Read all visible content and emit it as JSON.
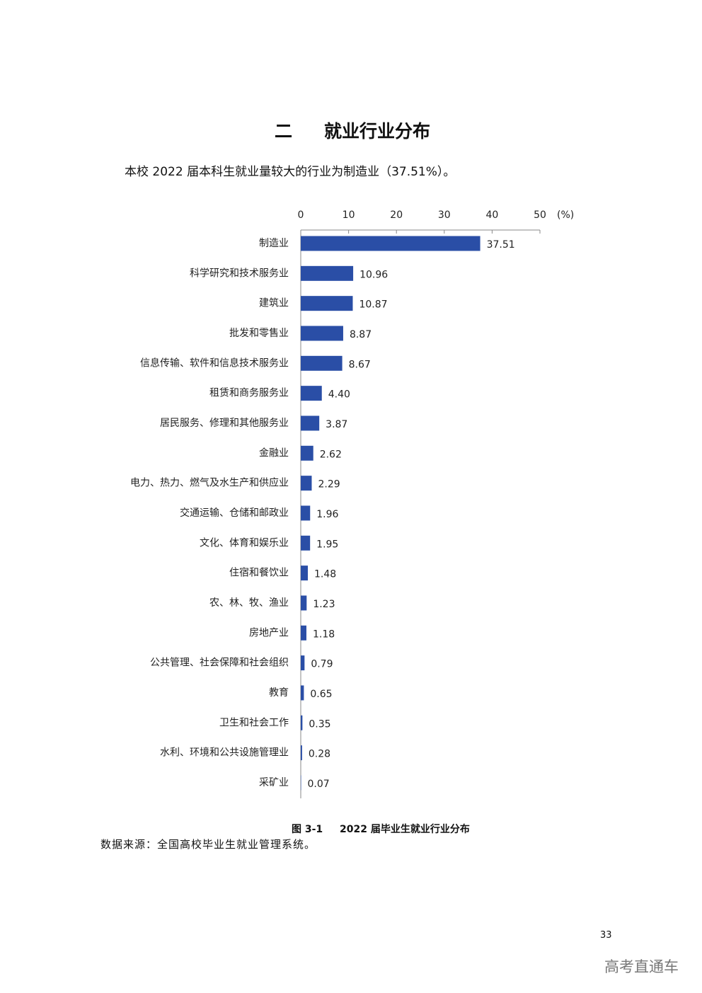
{
  "heading": {
    "number": "二",
    "title": "就业行业分布"
  },
  "intro": "本校 2022 届本科生就业量较大的行业为制造业（37.51%）。",
  "chart_data": {
    "type": "bar",
    "orientation": "horizontal",
    "x_unit_label": "(%)",
    "categories": [
      "制造业",
      "科学研究和技术服务业",
      "建筑业",
      "批发和零售业",
      "信息传输、软件和信息技术服务业",
      "租赁和商务服务业",
      "居民服务、修理和其他服务业",
      "金融业",
      "电力、热力、燃气及水生产和供应业",
      "交通运输、仓储和邮政业",
      "文化、体育和娱乐业",
      "住宿和餐饮业",
      "农、林、牧、渔业",
      "房地产业",
      "公共管理、社会保障和社会组织",
      "教育",
      "卫生和社会工作",
      "水利、环境和公共设施管理业",
      "采矿业"
    ],
    "values": [
      37.51,
      10.96,
      10.87,
      8.87,
      8.67,
      4.4,
      3.87,
      2.62,
      2.29,
      1.96,
      1.95,
      1.48,
      1.23,
      1.18,
      0.79,
      0.65,
      0.35,
      0.28,
      0.07
    ],
    "value_labels": [
      "37.51",
      "10.96",
      "10.87",
      "8.87",
      "8.67",
      "4.40",
      "3.87",
      "2.62",
      "2.29",
      "1.96",
      "1.95",
      "1.48",
      "1.23",
      "1.18",
      "0.79",
      "0.65",
      "0.35",
      "0.28",
      "0.07"
    ],
    "color": "#2a4ea6",
    "xlim": [
      0,
      50
    ],
    "xticks": [
      0,
      10,
      20,
      30,
      40,
      50
    ]
  },
  "caption": {
    "label": "图 3-1",
    "title": "2022 届毕业生就业行业分布"
  },
  "source": "数据来源：全国高校毕业生就业管理系统。",
  "page_number": "33",
  "watermark": "高考直通车"
}
